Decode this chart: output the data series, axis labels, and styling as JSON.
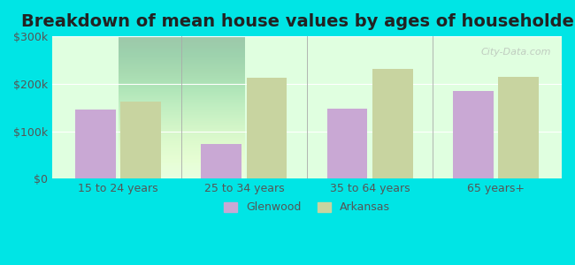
{
  "title": "Breakdown of mean house values by ages of householders",
  "categories": [
    "15 to 24 years",
    "25 to 34 years",
    "35 to 64 years",
    "65 years+"
  ],
  "glenwood": [
    145000,
    73000,
    148000,
    185000
  ],
  "arkansas": [
    163000,
    213000,
    232000,
    215000
  ],
  "glenwood_color": "#c9a8d4",
  "arkansas_color": "#c8d4a0",
  "ylim": [
    0,
    300000
  ],
  "yticks": [
    0,
    100000,
    200000,
    300000
  ],
  "ytick_labels": [
    "$0",
    "$100k",
    "$200k",
    "$300k"
  ],
  "background_color": "#e0ffe0",
  "outer_background": "#00e5e5",
  "title_fontsize": 14,
  "legend_glenwood": "Glenwood",
  "legend_arkansas": "Arkansas",
  "watermark": "City-Data.com"
}
